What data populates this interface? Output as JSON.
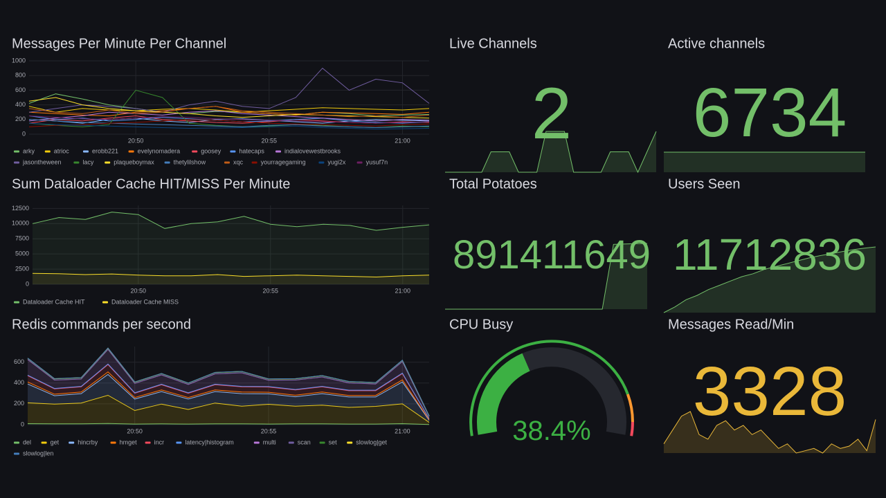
{
  "chart_data": [
    {
      "type": "line",
      "title": "Messages Per Minute Per Channel",
      "categories": [
        null,
        null,
        null,
        null,
        "20:50",
        null,
        null,
        null,
        null,
        "20:55",
        null,
        null,
        null,
        null,
        "21:00",
        null
      ],
      "ylim": [
        0,
        1000
      ],
      "yticks": [
        0,
        200,
        400,
        600,
        800,
        1000
      ],
      "grid": true,
      "legend": "bottom",
      "fill_opacity": 0,
      "series": [
        {
          "name": "arky",
          "color": "#73bf69",
          "values": [
            420,
            550,
            480,
            400,
            350,
            300,
            280,
            310,
            300,
            280,
            260,
            300,
            280,
            250,
            260,
            270
          ]
        },
        {
          "name": "atrioc",
          "color": "#f2cc0c",
          "values": [
            380,
            300,
            350,
            330,
            320,
            340,
            350,
            330,
            300,
            320,
            340,
            360,
            350,
            340,
            330,
            350
          ]
        },
        {
          "name": "erobb221",
          "color": "#8ab8ff",
          "values": [
            200,
            180,
            150,
            200,
            220,
            180,
            160,
            200,
            210,
            190,
            170,
            150,
            180,
            200,
            190,
            180
          ]
        },
        {
          "name": "evelynomadera",
          "color": "#ff780a",
          "values": [
            300,
            280,
            260,
            250,
            300,
            320,
            350,
            380,
            300,
            280,
            260,
            300,
            290,
            280,
            270,
            300
          ]
        },
        {
          "name": "goosey",
          "color": "#f2495c",
          "values": [
            150,
            200,
            180,
            220,
            250,
            200,
            180,
            160,
            150,
            170,
            200,
            180,
            160,
            150,
            170,
            160
          ]
        },
        {
          "name": "hatecaps",
          "color": "#5794f2",
          "values": [
            250,
            200,
            220,
            180,
            200,
            230,
            210,
            190,
            170,
            180,
            200,
            220,
            180,
            160,
            150,
            170
          ]
        },
        {
          "name": "indialovewestbrooks",
          "color": "#b877d9",
          "values": [
            180,
            220,
            250,
            300,
            280,
            260,
            300,
            320,
            280,
            260,
            240,
            220,
            200,
            180,
            200,
            190
          ]
        },
        {
          "name": "jasontheween",
          "color": "#705da0",
          "values": [
            300,
            350,
            400,
            380,
            350,
            300,
            400,
            450,
            380,
            350,
            500,
            900,
            600,
            750,
            700,
            420
          ]
        },
        {
          "name": "lacy",
          "color": "#37872d",
          "values": [
            150,
            120,
            100,
            130,
            600,
            500,
            150,
            120,
            100,
            110,
            130,
            120,
            100,
            90,
            110,
            100
          ]
        },
        {
          "name": "plaqueboymax",
          "color": "#fade2a",
          "values": [
            450,
            500,
            400,
            350,
            320,
            300,
            280,
            250,
            230,
            250,
            270,
            260,
            250,
            240,
            230,
            220
          ]
        },
        {
          "name": "thetylilshow",
          "color": "#447ebc",
          "values": [
            200,
            180,
            160,
            150,
            140,
            130,
            120,
            110,
            100,
            120,
            130,
            110,
            100,
            90,
            100,
            110
          ]
        },
        {
          "name": "xqc",
          "color": "#c15c17",
          "values": [
            350,
            300,
            280,
            330,
            280,
            300,
            350,
            380,
            320,
            300,
            280,
            260,
            240,
            250,
            230,
            260
          ]
        },
        {
          "name": "yourragegaming",
          "color": "#890f02",
          "values": [
            100,
            120,
            130,
            150,
            160,
            180,
            200,
            190,
            170,
            150,
            140,
            130,
            120,
            110,
            130,
            140
          ]
        },
        {
          "name": "yugi2x",
          "color": "#0a437c",
          "values": [
            150,
            130,
            120,
            110,
            100,
            90,
            80,
            85,
            90,
            100,
            110,
            90,
            80,
            70,
            75,
            80
          ]
        },
        {
          "name": "yusuf7n",
          "color": "#6d1f62",
          "values": [
            250,
            230,
            210,
            200,
            220,
            240,
            230,
            210,
            200,
            190,
            180,
            170,
            160,
            150,
            160,
            170
          ]
        }
      ]
    },
    {
      "type": "line",
      "title": "Sum Dataloader Cache HIT/MISS Per Minute",
      "categories": [
        null,
        null,
        null,
        null,
        "20:50",
        null,
        null,
        null,
        null,
        "20:55",
        null,
        null,
        null,
        null,
        "21:00",
        null
      ],
      "ylim": [
        0,
        13000
      ],
      "yticks": [
        0,
        2500,
        5000,
        7500,
        10000,
        12500
      ],
      "grid": true,
      "legend": "bottom",
      "fill_opacity": 0.08,
      "series": [
        {
          "name": "Dataloader Cache HIT",
          "color": "#73bf69",
          "values": [
            10000,
            11000,
            10700,
            11900,
            11500,
            9200,
            10000,
            10300,
            11200,
            9900,
            9500,
            9900,
            9700,
            8900,
            9400,
            9800
          ]
        },
        {
          "name": "Dataloader Cache MISS",
          "color": "#fade2a",
          "values": [
            1800,
            1750,
            1600,
            1700,
            1500,
            1400,
            1400,
            1600,
            1300,
            1400,
            1500,
            1400,
            1300,
            1200,
            1400,
            1500
          ]
        }
      ]
    },
    {
      "type": "area",
      "title": "Redis commands per second",
      "stacked": true,
      "categories": [
        null,
        null,
        null,
        null,
        "20:50",
        null,
        null,
        null,
        null,
        "20:55",
        null,
        null,
        null,
        null,
        "21:00",
        null
      ],
      "ylim": [
        0,
        750
      ],
      "yticks": [
        0,
        200,
        400,
        600
      ],
      "grid": true,
      "legend": "bottom",
      "fill_opacity": 0.15,
      "series": [
        {
          "name": "del",
          "color": "#73bf69",
          "values": [
            10,
            8,
            8,
            12,
            6,
            8,
            6,
            8,
            8,
            6,
            8,
            8,
            6,
            6,
            10,
            2
          ]
        },
        {
          "name": "get",
          "color": "#f2cc0c",
          "values": [
            200,
            190,
            200,
            270,
            130,
            190,
            140,
            200,
            170,
            190,
            170,
            180,
            160,
            170,
            190,
            20
          ]
        },
        {
          "name": "hincrby",
          "color": "#8ab8ff",
          "values": [
            180,
            80,
            90,
            200,
            110,
            120,
            100,
            110,
            120,
            100,
            90,
            110,
            100,
            90,
            210,
            20
          ]
        },
        {
          "name": "hmget",
          "color": "#ff780a",
          "values": [
            20,
            15,
            15,
            25,
            15,
            15,
            15,
            15,
            15,
            15,
            15,
            15,
            15,
            15,
            20,
            5
          ]
        },
        {
          "name": "incr",
          "color": "#f2495c",
          "values": [
            60,
            50,
            50,
            70,
            40,
            50,
            40,
            50,
            50,
            50,
            50,
            50,
            45,
            45,
            60,
            10
          ]
        },
        {
          "name": "latency|histogram",
          "color": "#5794f2",
          "values": [
            5,
            5,
            5,
            5,
            5,
            5,
            5,
            5,
            5,
            5,
            5,
            5,
            5,
            5,
            5,
            2
          ]
        },
        {
          "name": "multi",
          "color": "#b877d9",
          "values": [
            150,
            80,
            70,
            140,
            90,
            90,
            80,
            100,
            130,
            60,
            90,
            90,
            70,
            60,
            110,
            20
          ]
        },
        {
          "name": "scan",
          "color": "#705da0",
          "values": [
            2,
            2,
            2,
            2,
            2,
            2,
            2,
            2,
            2,
            2,
            2,
            2,
            2,
            2,
            2,
            1
          ]
        },
        {
          "name": "set",
          "color": "#37872d",
          "values": [
            10,
            10,
            10,
            10,
            10,
            10,
            10,
            10,
            10,
            10,
            10,
            10,
            10,
            10,
            10,
            3
          ]
        },
        {
          "name": "slowlog|get",
          "color": "#fade2a",
          "values": [
            1,
            1,
            1,
            1,
            1,
            1,
            1,
            1,
            1,
            1,
            1,
            1,
            1,
            1,
            1,
            1
          ]
        },
        {
          "name": "slowlog|len",
          "color": "#447ebc",
          "values": [
            1,
            1,
            1,
            1,
            1,
            1,
            1,
            1,
            1,
            1,
            1,
            1,
            1,
            1,
            1,
            1
          ]
        }
      ]
    },
    {
      "type": "stat",
      "title": "Live Channels",
      "value": 2,
      "color": "#73bf69",
      "values": [
        0,
        0,
        0,
        0,
        0,
        1,
        1,
        1,
        0,
        0,
        0,
        2,
        2,
        2,
        0,
        0,
        0,
        0,
        1,
        1,
        1,
        0,
        1,
        2
      ]
    },
    {
      "type": "stat",
      "title": "Active channels",
      "value": 6734,
      "color": "#73bf69",
      "values": [
        6734,
        6734,
        6734,
        6734,
        6734,
        6734,
        6734,
        6734,
        6734,
        6734,
        6734,
        6734
      ]
    },
    {
      "type": "stat",
      "title": "Total Potatoes",
      "value": 891411649,
      "color": "#73bf69",
      "values": [
        891380000,
        891380000,
        891380000,
        891380000,
        891380000,
        891380000,
        891380000,
        891380000,
        891380000,
        891380000,
        891380000,
        891380000,
        891380000,
        891380000,
        891380000,
        891411200,
        891411400,
        891411550,
        891411649
      ]
    },
    {
      "type": "stat",
      "title": "Users Seen",
      "value": 11712836,
      "color": "#73bf69",
      "values": [
        11690000,
        11692000,
        11694500,
        11696000,
        11698000,
        11699500,
        11701000,
        11702500,
        11703500,
        11705000,
        11706000,
        11707000,
        11708000,
        11709000,
        11709800,
        11710500,
        11711200,
        11711900,
        11712400,
        11712836
      ]
    },
    {
      "type": "gauge",
      "title": "CPU Busy",
      "value": 38.4,
      "value_label": "38.4%",
      "ylim": [
        0,
        100
      ],
      "color": "#3cb043",
      "thresholds": [
        {
          "value": 0,
          "color": "#3cb043"
        },
        {
          "value": 85,
          "color": "#ff9830"
        },
        {
          "value": 95,
          "color": "#f2495c"
        }
      ]
    },
    {
      "type": "stat",
      "title": "Messages Read/Min",
      "value": 3328,
      "color": "#eab839",
      "values": [
        2800,
        3100,
        3400,
        3500,
        3000,
        2900,
        3200,
        3300,
        3100,
        3200,
        3000,
        3100,
        2900,
        2700,
        2800,
        2600,
        2650,
        2700,
        2600,
        2800,
        2700,
        2750,
        2900,
        2650,
        3328
      ]
    }
  ]
}
